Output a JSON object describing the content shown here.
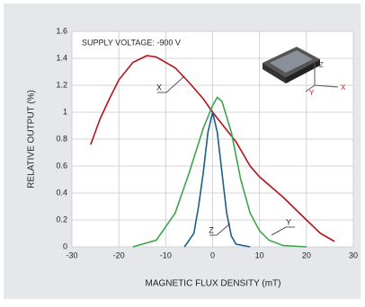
{
  "chart_data": {
    "type": "line",
    "annotation": "SUPPLY VOLTAGE: -900 V",
    "xlabel": "MAGNETIC FLUX DENSITY (mT)",
    "ylabel": "RELATIVE OUTPUT (%)",
    "inset_labels": [
      "Z",
      "Y",
      "X"
    ],
    "xlim": [
      -30,
      30
    ],
    "xticks": [
      -30,
      -20,
      -10,
      0,
      10,
      20,
      30
    ],
    "ylim": [
      0,
      1.6
    ],
    "yticks": [
      0,
      0.2,
      0.4,
      0.6,
      0.8,
      1,
      1.2,
      1.4,
      1.6
    ],
    "grid": true,
    "series": [
      {
        "name": "X",
        "color": "#b0141c",
        "x": [
          -26,
          -24,
          -22,
          -20,
          -17,
          -14,
          -12,
          -8,
          -5,
          -2,
          0,
          5,
          8,
          10,
          15,
          20,
          23,
          26
        ],
        "values": [
          0.76,
          0.95,
          1.1,
          1.24,
          1.37,
          1.42,
          1.41,
          1.33,
          1.22,
          1.1,
          1.0,
          0.78,
          0.6,
          0.52,
          0.37,
          0.2,
          0.1,
          0.04
        ]
      },
      {
        "name": "Y",
        "color": "#3aa64a",
        "x": [
          -17,
          -12,
          -8,
          -5,
          -2,
          0,
          1,
          2,
          4,
          6,
          8,
          10,
          12,
          15,
          20
        ],
        "values": [
          0,
          0.05,
          0.25,
          0.55,
          0.88,
          1.05,
          1.11,
          1.08,
          0.85,
          0.5,
          0.25,
          0.12,
          0.05,
          0.01,
          0
        ]
      },
      {
        "name": "Z",
        "color": "#1d5d8a",
        "x": [
          -6,
          -4,
          -3,
          -2,
          -1,
          0,
          1,
          2,
          3,
          4,
          5,
          8
        ],
        "values": [
          0,
          0.1,
          0.3,
          0.55,
          0.85,
          1.0,
          0.85,
          0.55,
          0.25,
          0.08,
          0.02,
          0
        ]
      }
    ]
  }
}
